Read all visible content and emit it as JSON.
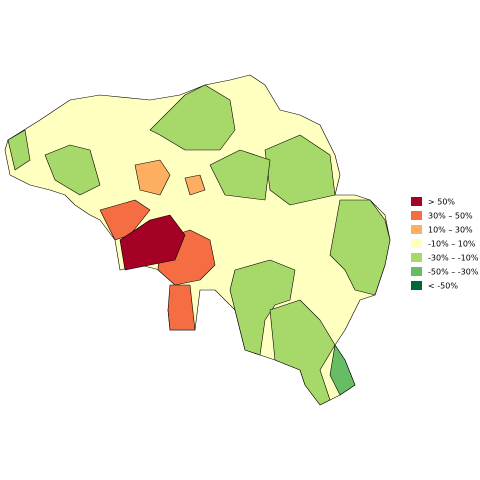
{
  "legend": {
    "items": [
      {
        "label": "> 50%",
        "color": "#a50026"
      },
      {
        "label": "30%  –  50%",
        "color": "#f46d43"
      },
      {
        "label": "10%  –  30%",
        "color": "#fdae61"
      },
      {
        "label": "-10%  –  10%",
        "color": "#ffffbf"
      },
      {
        "label": "-30%  –  -10%",
        "color": "#a6d96a"
      },
      {
        "label": "-50%  –  -30%",
        "color": "#66bd63"
      },
      {
        "label": "< -50%",
        "color": "#006837"
      }
    ]
  }
}
